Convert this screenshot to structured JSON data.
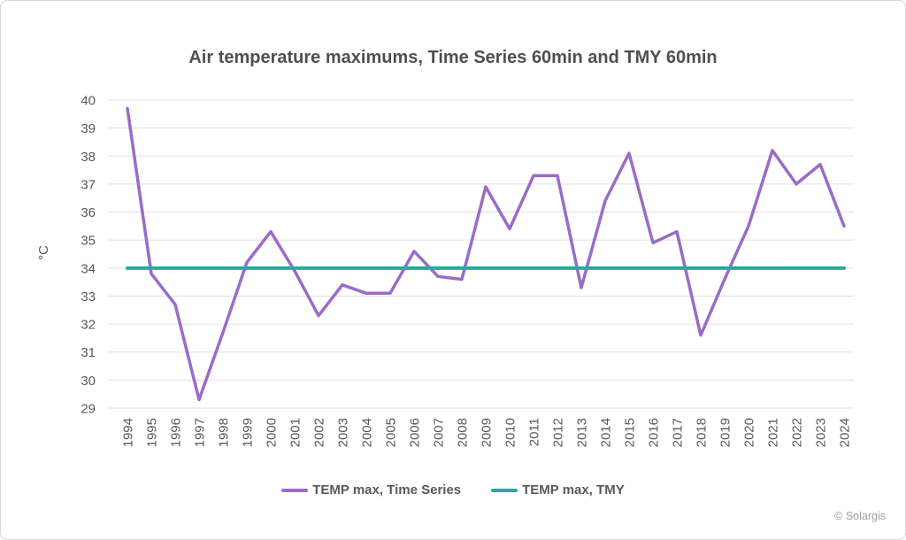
{
  "title": "Air temperature maximums, Time Series 60min and TMY 60min",
  "y_axis_unit": "°C",
  "copyright": "© Solargis",
  "colors": {
    "timeseries_line": "#9b6bc8",
    "tmy_line": "#2fa6a1",
    "axis_text": "#595959",
    "title_text": "#4f4f4f",
    "gridline": "#e0e0e0",
    "copyright_text": "#9e9e9e",
    "background": "#ffffff",
    "border": "#d8d8d8"
  },
  "legend": [
    {
      "label": "TEMP max, Time Series",
      "color": "#9b6bc8"
    },
    {
      "label": "TEMP max, TMY",
      "color": "#2fa6a1"
    }
  ],
  "chart_data": {
    "type": "line",
    "title": "Air temperature maximums, Time Series 60min and TMY 60min",
    "xlabel": "",
    "ylabel": "°C",
    "ylim": [
      29,
      40
    ],
    "ytick_step": 1,
    "grid": true,
    "legend_position": "bottom",
    "x": [
      1994,
      1995,
      1996,
      1997,
      1998,
      1999,
      2000,
      2001,
      2002,
      2003,
      2004,
      2005,
      2006,
      2007,
      2008,
      2009,
      2010,
      2011,
      2012,
      2013,
      2014,
      2015,
      2016,
      2017,
      2018,
      2019,
      2020,
      2021,
      2022,
      2023,
      2024
    ],
    "series": [
      {
        "name": "TEMP max, Time Series",
        "color": "#9b6bc8",
        "values": [
          39.7,
          33.8,
          32.7,
          29.3,
          31.7,
          34.2,
          35.3,
          33.9,
          32.3,
          33.4,
          33.1,
          33.1,
          34.6,
          33.7,
          33.6,
          36.9,
          35.4,
          37.3,
          37.3,
          33.3,
          36.4,
          38.1,
          34.9,
          35.3,
          31.6,
          33.6,
          35.5,
          38.2,
          37.0,
          37.7,
          35.5
        ]
      },
      {
        "name": "TEMP max, TMY",
        "color": "#2fa6a1",
        "values": [
          34,
          34,
          34,
          34,
          34,
          34,
          34,
          34,
          34,
          34,
          34,
          34,
          34,
          34,
          34,
          34,
          34,
          34,
          34,
          34,
          34,
          34,
          34,
          34,
          34,
          34,
          34,
          34,
          34,
          34,
          34
        ]
      }
    ]
  }
}
